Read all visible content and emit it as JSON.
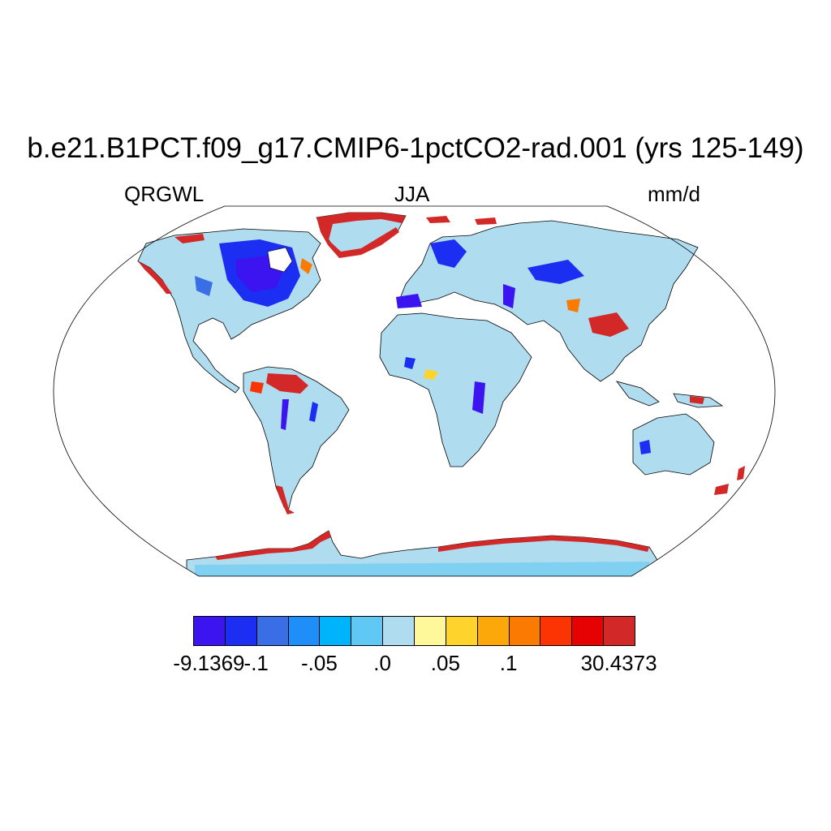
{
  "title": "b.e21.B1PCT.f09_g17.CMIP6-1pctCO2-rad.001 (yrs 125-149)",
  "left_string": "QRGWL",
  "center_string": "JJA",
  "right_string": "mm/d",
  "projection": "Robinson",
  "colorbar": {
    "colors": [
      "#3b14f0",
      "#1c2ef2",
      "#3a6ee6",
      "#208ef8",
      "#00b4fc",
      "#60c8f4",
      "#b0dcf0",
      "#fef89a",
      "#fed42c",
      "#fca80a",
      "#fa7a02",
      "#fa3402",
      "#e60202",
      "#d22828"
    ],
    "labels": [
      "-9.1369",
      "-.1",
      "-.05",
      ".0",
      ".05",
      ".1",
      "30.4373"
    ]
  },
  "legend_colors": {
    "ocean": "#ffffff",
    "land_background": "#b0dcf0",
    "coastline": "#000000"
  }
}
